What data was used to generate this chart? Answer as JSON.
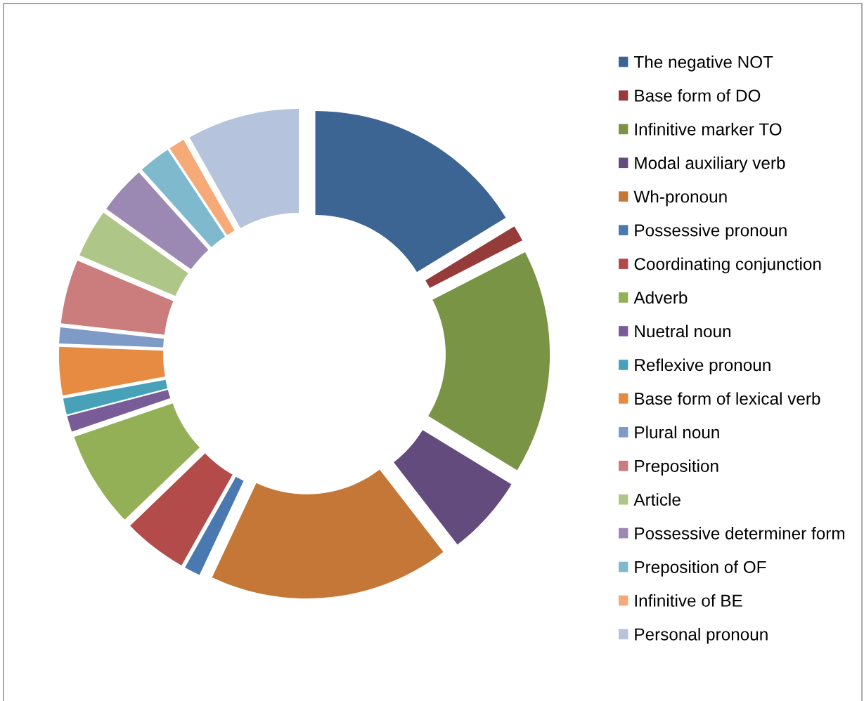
{
  "chart_data": {
    "type": "donut",
    "categories": [
      "The negative NOT",
      "Base form of DO",
      "Infinitive marker TO",
      "Modal auxiliary verb",
      "Wh-pronoun",
      "Possessive pronoun",
      "Coordinating conjunction",
      "Adverb",
      "Nuetral noun",
      "Reflexive pronoun",
      "Base form of lexical verb",
      "Plural noun",
      "Preposition",
      "Article",
      "Possessive determiner form",
      "Preposition of OF",
      "Infinitive of BE",
      "Personal pronoun"
    ],
    "values": [
      16.28,
      1.16,
      16.28,
      5.81,
      17.45,
      1.16,
      4.65,
      6.98,
      1.16,
      1.16,
      3.49,
      1.16,
      4.65,
      3.49,
      3.49,
      2.33,
      1.16,
      8.14
    ],
    "colors": [
      "#3c6594",
      "#953b39",
      "#7a9445",
      "#634c7d",
      "#c47736",
      "#4a78b0",
      "#b24b4a",
      "#93b057",
      "#795c97",
      "#47a2b9",
      "#e88b42",
      "#7e9bc8",
      "#ca7d7c",
      "#aec687",
      "#9b89b3",
      "#7eb9ce",
      "#f6aa78",
      "#b5c3dc"
    ],
    "legend": "right"
  }
}
